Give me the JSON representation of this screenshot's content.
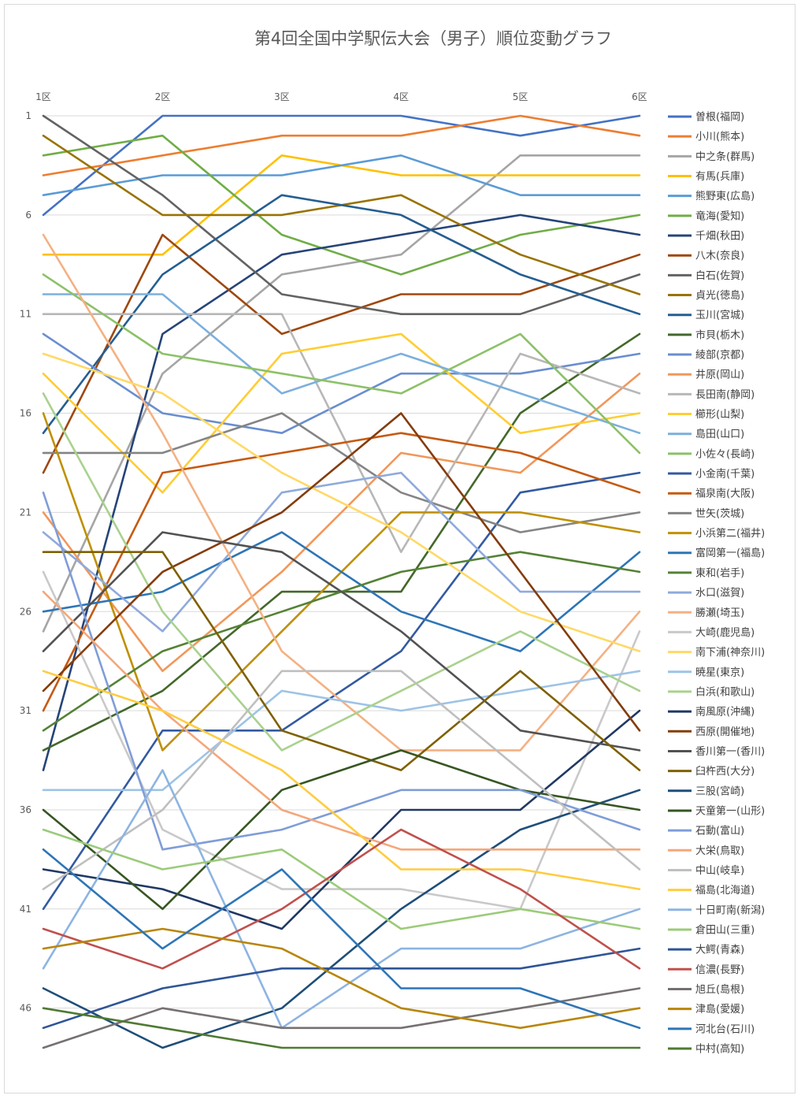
{
  "chart_data": {
    "type": "line",
    "title": "第4回全国中学駅伝大会（男子）順位変動グラフ",
    "categories": [
      "1区",
      "2区",
      "3区",
      "4区",
      "5区",
      "6区"
    ],
    "ylim": [
      1,
      48
    ],
    "y_inverted": true,
    "y_ticks": [
      1,
      6,
      11,
      16,
      21,
      26,
      31,
      36,
      41,
      46
    ],
    "grid": true,
    "legend_position": "right",
    "series": [
      {
        "name": "曽根(福岡)",
        "color": "#4472C4",
        "values": [
          6,
          1,
          1,
          1,
          2,
          1
        ]
      },
      {
        "name": "小川(熊本)",
        "color": "#ED7D31",
        "values": [
          4,
          3,
          2,
          2,
          1,
          2
        ]
      },
      {
        "name": "中之条(群馬)",
        "color": "#A5A5A5",
        "values": [
          27,
          14,
          9,
          8,
          3,
          3
        ]
      },
      {
        "name": "有馬(兵庫)",
        "color": "#FFC000",
        "values": [
          8,
          8,
          3,
          4,
          4,
          4
        ]
      },
      {
        "name": "熊野東(広島)",
        "color": "#5B9BD5",
        "values": [
          5,
          4,
          4,
          3,
          5,
          5
        ]
      },
      {
        "name": "竜海(愛知)",
        "color": "#70AD47",
        "values": [
          3,
          2,
          7,
          9,
          7,
          6
        ]
      },
      {
        "name": "千畑(秋田)",
        "color": "#264478",
        "values": [
          34,
          12,
          8,
          7,
          6,
          7
        ]
      },
      {
        "name": "八木(奈良)",
        "color": "#9E480E",
        "values": [
          19,
          7,
          12,
          10,
          10,
          8
        ]
      },
      {
        "name": "白石(佐賀)",
        "color": "#636363",
        "values": [
          1,
          5,
          10,
          11,
          11,
          9
        ]
      },
      {
        "name": "貞光(徳島)",
        "color": "#997300",
        "values": [
          2,
          6,
          6,
          5,
          8,
          10
        ]
      },
      {
        "name": "玉川(宮城)",
        "color": "#255E91",
        "values": [
          17,
          9,
          5,
          6,
          9,
          11
        ]
      },
      {
        "name": "市貝(栃木)",
        "color": "#43682B",
        "values": [
          33,
          30,
          25,
          25,
          16,
          12
        ]
      },
      {
        "name": "綾部(京都)",
        "color": "#698ED0",
        "values": [
          12,
          16,
          17,
          14,
          14,
          13
        ]
      },
      {
        "name": "井原(岡山)",
        "color": "#F1975A",
        "values": [
          21,
          29,
          24,
          18,
          19,
          14
        ]
      },
      {
        "name": "長田南(静岡)",
        "color": "#B7B7B7",
        "values": [
          11,
          11,
          11,
          23,
          13,
          15
        ]
      },
      {
        "name": "櫛形(山梨)",
        "color": "#FFCD33",
        "values": [
          14,
          20,
          13,
          12,
          17,
          16
        ]
      },
      {
        "name": "島田(山口)",
        "color": "#7CAFDD",
        "values": [
          10,
          10,
          15,
          13,
          15,
          17
        ]
      },
      {
        "name": "小佐々(長崎)",
        "color": "#8CC168",
        "values": [
          9,
          13,
          14,
          15,
          12,
          18
        ]
      },
      {
        "name": "小金南(千葉)",
        "color": "#335AA1",
        "values": [
          41,
          32,
          32,
          28,
          20,
          19
        ]
      },
      {
        "name": "福泉南(大阪)",
        "color": "#C55A11",
        "values": [
          31,
          19,
          18,
          17,
          18,
          20
        ]
      },
      {
        "name": "世矢(茨城)",
        "color": "#848484",
        "values": [
          18,
          18,
          16,
          20,
          22,
          21
        ]
      },
      {
        "name": "小浜第二(福井)",
        "color": "#BF9000",
        "values": [
          16,
          33,
          27,
          21,
          21,
          22
        ]
      },
      {
        "name": "富岡第一(福島)",
        "color": "#2E75B6",
        "values": [
          26,
          25,
          22,
          26,
          28,
          23
        ]
      },
      {
        "name": "東和(岩手)",
        "color": "#548235",
        "values": [
          32,
          28,
          26,
          24,
          23,
          24
        ]
      },
      {
        "name": "水口(滋賀)",
        "color": "#8FAADC",
        "values": [
          22,
          27,
          20,
          19,
          25,
          25
        ]
      },
      {
        "name": "勝瀬(埼玉)",
        "color": "#F4B183",
        "values": [
          7,
          17,
          28,
          33,
          33,
          26
        ]
      },
      {
        "name": "大崎(鹿児島)",
        "color": "#C9C9C9",
        "values": [
          24,
          37,
          40,
          40,
          41,
          27
        ]
      },
      {
        "name": "南下浦(神奈川)",
        "color": "#FFD966",
        "values": [
          13,
          15,
          19,
          22,
          26,
          28
        ]
      },
      {
        "name": "暁星(東京)",
        "color": "#9DC3E6",
        "values": [
          35,
          35,
          30,
          31,
          30,
          29
        ]
      },
      {
        "name": "白浜(和歌山)",
        "color": "#A9D18E",
        "values": [
          15,
          26,
          33,
          30,
          27,
          30
        ]
      },
      {
        "name": "南風原(沖縄)",
        "color": "#203864",
        "values": [
          39,
          40,
          42,
          36,
          36,
          31
        ]
      },
      {
        "name": "西原(開催地)",
        "color": "#843C0C",
        "values": [
          30,
          24,
          21,
          16,
          24,
          32
        ]
      },
      {
        "name": "香川第一(香川)",
        "color": "#525252",
        "values": [
          28,
          22,
          23,
          27,
          32,
          33
        ]
      },
      {
        "name": "臼杵西(大分)",
        "color": "#7F6000",
        "values": [
          23,
          23,
          32,
          34,
          29,
          34
        ]
      },
      {
        "name": "三股(宮崎)",
        "color": "#1F4E79",
        "values": [
          45,
          48,
          46,
          41,
          37,
          35
        ]
      },
      {
        "name": "天童第一(山形)",
        "color": "#375623",
        "values": [
          36,
          41,
          35,
          33,
          35,
          36
        ]
      },
      {
        "name": "石動(富山)",
        "color": "#7F9DD8",
        "values": [
          20,
          38,
          37,
          35,
          35,
          37
        ]
      },
      {
        "name": "大栄(鳥取)",
        "color": "#F4A77A",
        "values": [
          25,
          31,
          36,
          38,
          38,
          38
        ]
      },
      {
        "name": "中山(岐阜)",
        "color": "#BFBFBF",
        "values": [
          40,
          36,
          29,
          29,
          34,
          39
        ]
      },
      {
        "name": "福島(北海道)",
        "color": "#FFCC40",
        "values": [
          29,
          31,
          34,
          39,
          39,
          40
        ]
      },
      {
        "name": "十日町南(新潟)",
        "color": "#8DB4E2",
        "values": [
          44,
          34,
          47,
          43,
          43,
          41
        ]
      },
      {
        "name": "倉田山(三重)",
        "color": "#9BCB7A",
        "values": [
          37,
          39,
          38,
          42,
          41,
          42
        ]
      },
      {
        "name": "大鰐(青森)",
        "color": "#2F5597",
        "values": [
          47,
          45,
          44,
          44,
          44,
          43
        ]
      },
      {
        "name": "信濃(長野)",
        "color": "#C0504D",
        "values": [
          42,
          44,
          41,
          37,
          40,
          44
        ]
      },
      {
        "name": "旭丘(島根)",
        "color": "#767171",
        "values": [
          48,
          46,
          47,
          47,
          46,
          45
        ]
      },
      {
        "name": "津島(愛媛)",
        "color": "#B8860B",
        "values": [
          43,
          42,
          43,
          46,
          47,
          46
        ]
      },
      {
        "name": "河北台(石川)",
        "color": "#2E75B6",
        "values": [
          38,
          43,
          39,
          45,
          45,
          47
        ]
      },
      {
        "name": "中村(高知)",
        "color": "#4E7A32",
        "values": [
          46,
          47,
          48,
          48,
          48,
          48
        ]
      }
    ]
  }
}
